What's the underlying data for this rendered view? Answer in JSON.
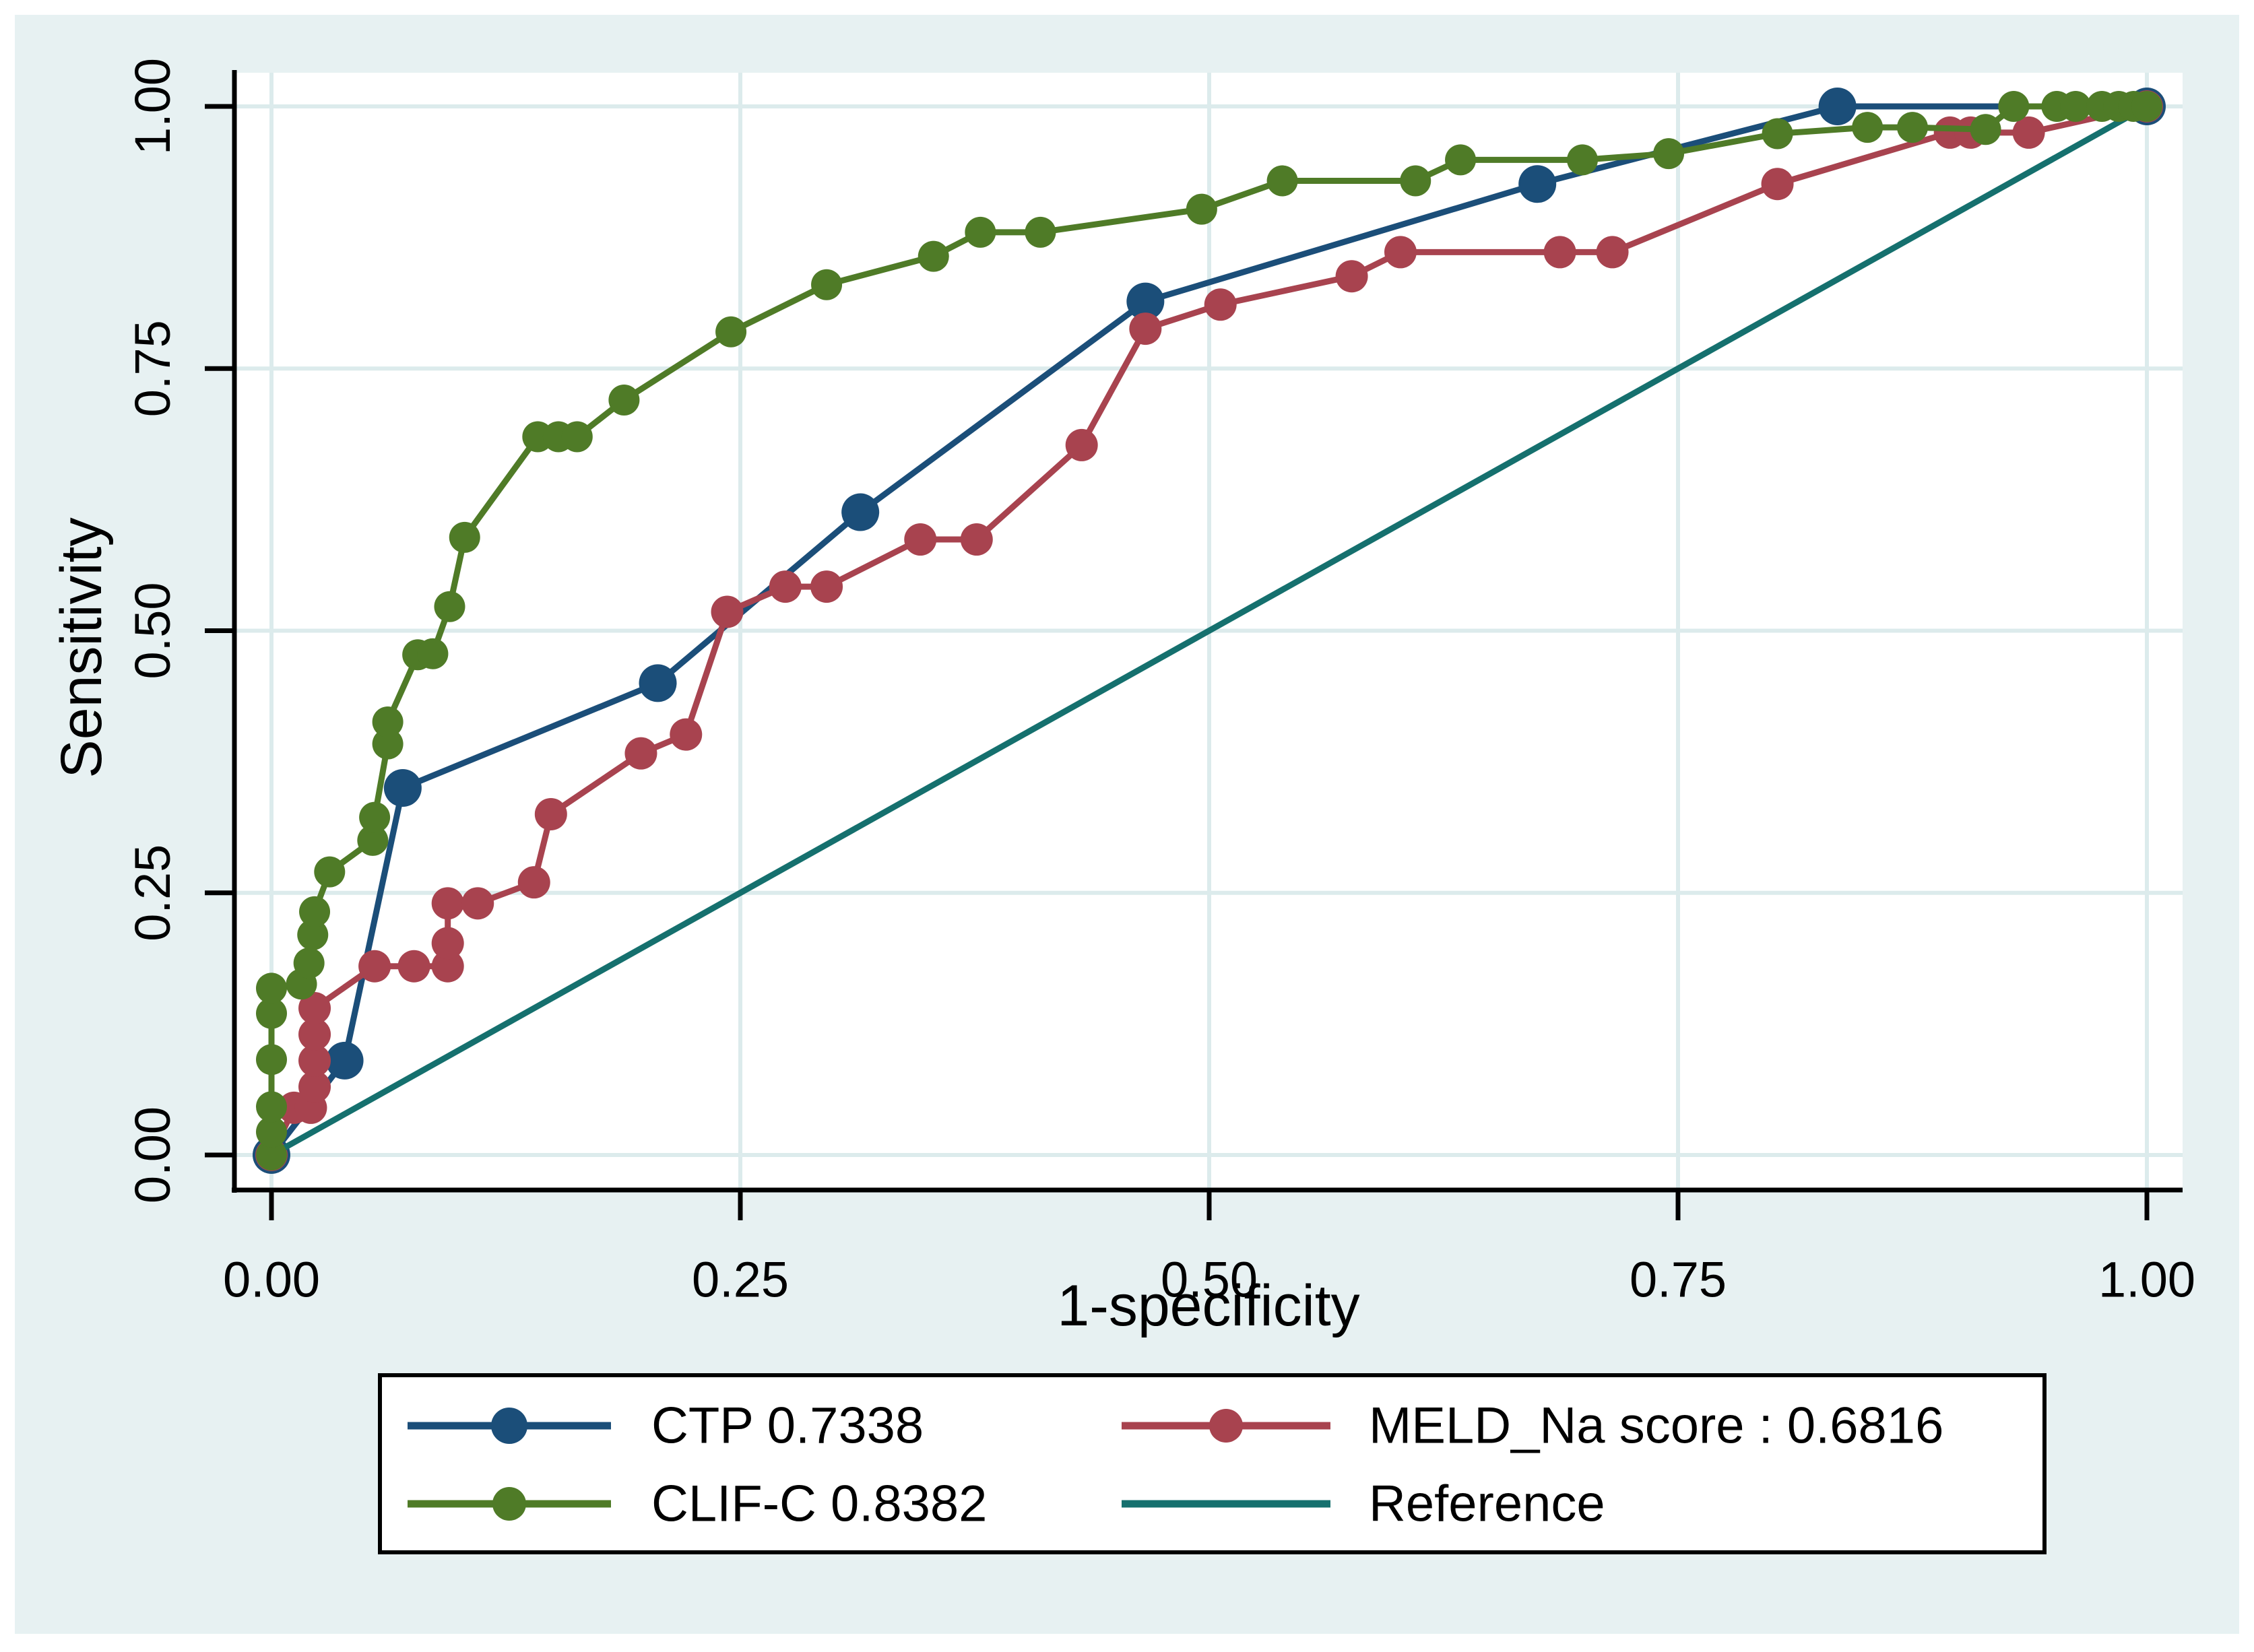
{
  "figure": {
    "canvas_bg": "#e7f1f2",
    "plot_bg": "#ffffff",
    "grid_color": "#dcebec",
    "axis_color": "#000000",
    "legend_border_color": "#000000",
    "legend_bg": "#ffffff"
  },
  "axes": {
    "x_title": "1-specificity",
    "y_title": "Sensitivity",
    "x_ticks": [
      {
        "v": 0.0,
        "label": "0.00"
      },
      {
        "v": 0.25,
        "label": "0.25"
      },
      {
        "v": 0.5,
        "label": "0.50"
      },
      {
        "v": 0.75,
        "label": "0.75"
      },
      {
        "v": 1.0,
        "label": "1.00"
      }
    ],
    "y_ticks": [
      {
        "v": 0.0,
        "label": "0.00"
      },
      {
        "v": 0.25,
        "label": "0.25"
      },
      {
        "v": 0.5,
        "label": "0.50"
      },
      {
        "v": 0.75,
        "label": "0.75"
      },
      {
        "v": 1.0,
        "label": "1.00"
      }
    ]
  },
  "legend": {
    "items": [
      {
        "label": "CTP 0.7338",
        "color": "#1b4e79",
        "marker": true
      },
      {
        "label": "MELD_Na score : 0.6816",
        "color": "#a8434f",
        "marker": true
      },
      {
        "label": "CLIF-C 0.8382",
        "color": "#4f7b27",
        "marker": true
      },
      {
        "label": "Reference",
        "color": "#15706e",
        "marker": false
      }
    ]
  },
  "chart_data": {
    "type": "line",
    "title": "",
    "xlabel": "1-specificity",
    "ylabel": "Sensitivity",
    "xlim": [
      0,
      1
    ],
    "ylim": [
      0,
      1
    ],
    "grid": true,
    "legend_position": "bottom",
    "series": [
      {
        "id": "ctp",
        "name": "CTP",
        "auc": 0.7338,
        "color": "#1b4e79",
        "marker_radius": 28,
        "points": [
          [
            0,
            0
          ],
          [
            0.039,
            0.09
          ],
          [
            0.07,
            0.35
          ],
          [
            0.206,
            0.45
          ],
          [
            0.314,
            0.613
          ],
          [
            0.466,
            0.814
          ],
          [
            0.675,
            0.926
          ],
          [
            0.835,
            1
          ],
          [
            1,
            1
          ]
        ]
      },
      {
        "id": "meld_na",
        "name": "MELD_Na score",
        "auc": 0.6816,
        "color": "#a8434f",
        "marker_radius": 24,
        "points": [
          [
            0,
            0
          ],
          [
            0.012,
            0.045
          ],
          [
            0.021,
            0.045
          ],
          [
            0.023,
            0.065
          ],
          [
            0.023,
            0.09
          ],
          [
            0.023,
            0.115
          ],
          [
            0.023,
            0.14
          ],
          [
            0.055,
            0.18
          ],
          [
            0.076,
            0.18
          ],
          [
            0.094,
            0.18
          ],
          [
            0.094,
            0.202
          ],
          [
            0.094,
            0.24
          ],
          [
            0.11,
            0.24
          ],
          [
            0.14,
            0.26
          ],
          [
            0.149,
            0.325
          ],
          [
            0.197,
            0.383
          ],
          [
            0.221,
            0.401
          ],
          [
            0.243,
            0.518
          ],
          [
            0.274,
            0.542
          ],
          [
            0.296,
            0.542
          ],
          [
            0.346,
            0.587
          ],
          [
            0.376,
            0.587
          ],
          [
            0.432,
            0.677
          ],
          [
            0.466,
            0.788
          ],
          [
            0.506,
            0.811
          ],
          [
            0.576,
            0.838
          ],
          [
            0.602,
            0.861
          ],
          [
            0.687,
            0.861
          ],
          [
            0.715,
            0.861
          ],
          [
            0.803,
            0.926
          ],
          [
            0.895,
            0.975
          ],
          [
            0.906,
            0.975
          ],
          [
            0.937,
            0.975
          ],
          [
            1,
            1
          ]
        ]
      },
      {
        "id": "reference",
        "name": "Reference",
        "color": "#15706e",
        "marker_radius": 0,
        "points": [
          [
            0,
            0
          ],
          [
            1,
            1
          ]
        ]
      },
      {
        "id": "clif_c",
        "name": "CLIF-C",
        "auc": 0.8382,
        "color": "#4f7b27",
        "marker_radius": 23,
        "points": [
          [
            0,
            0
          ],
          [
            0,
            0.022
          ],
          [
            0,
            0.046
          ],
          [
            0,
            0.091
          ],
          [
            0,
            0.135
          ],
          [
            0,
            0.159
          ],
          [
            0.016,
            0.163
          ],
          [
            0.02,
            0.183
          ],
          [
            0.022,
            0.21
          ],
          [
            0.023,
            0.232
          ],
          [
            0.031,
            0.27
          ],
          [
            0.054,
            0.3
          ],
          [
            0.055,
            0.322
          ],
          [
            0.062,
            0.392
          ],
          [
            0.062,
            0.413
          ],
          [
            0.078,
            0.477
          ],
          [
            0.086,
            0.478
          ],
          [
            0.095,
            0.523
          ],
          [
            0.103,
            0.589
          ],
          [
            0.142,
            0.685
          ],
          [
            0.153,
            0.685
          ],
          [
            0.163,
            0.685
          ],
          [
            0.188,
            0.72
          ],
          [
            0.245,
            0.785
          ],
          [
            0.296,
            0.83
          ],
          [
            0.353,
            0.857
          ],
          [
            0.378,
            0.88
          ],
          [
            0.41,
            0.88
          ],
          [
            0.496,
            0.902
          ],
          [
            0.539,
            0.929
          ],
          [
            0.61,
            0.929
          ],
          [
            0.634,
            0.949
          ],
          [
            0.699,
            0.949
          ],
          [
            0.745,
            0.955
          ],
          [
            0.803,
            0.974
          ],
          [
            0.851,
            0.98
          ],
          [
            0.875,
            0.98
          ],
          [
            0.914,
            0.978
          ],
          [
            0.929,
            1
          ],
          [
            0.952,
            1
          ],
          [
            0.962,
            1
          ],
          [
            0.976,
            1
          ],
          [
            0.985,
            1
          ],
          [
            0.993,
            1
          ],
          [
            1,
            1
          ]
        ]
      }
    ]
  }
}
